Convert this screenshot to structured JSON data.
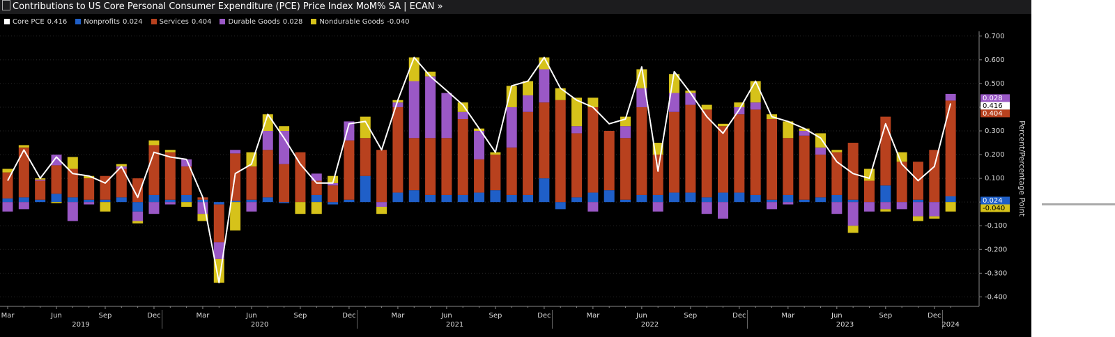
{
  "chart_data": {
    "type": "stacked_bar",
    "title": "Contributions to US Core Personal Consumer Expenditure (PCE) Price Index MoM% SA | ECAN »",
    "y_axis_label": "Percent/Percentage Point",
    "categories": [
      "Mar",
      null,
      null,
      "Jun",
      null,
      null,
      "Sep",
      null,
      null,
      "Dec",
      null,
      null,
      "Mar",
      null,
      null,
      "Jun",
      null,
      null,
      "Sep",
      null,
      null,
      "Dec",
      null,
      null,
      "Mar",
      null,
      null,
      "Jun",
      null,
      null,
      "Sep",
      null,
      null,
      "Dec",
      null,
      null,
      "Mar",
      null,
      null,
      "Jun",
      null,
      null,
      "Sep",
      null,
      null,
      "Dec",
      null,
      null,
      "Mar",
      null,
      null,
      "Jun",
      null,
      null,
      "Sep",
      null,
      null,
      "Dec",
      null
    ],
    "year_groups": [
      {
        "label": "2019",
        "count": 10
      },
      {
        "label": "2020",
        "count": 12
      },
      {
        "label": "2021",
        "count": 12
      },
      {
        "label": "2022",
        "count": 12
      },
      {
        "label": "2023",
        "count": 12
      },
      {
        "label": "2024",
        "count": 1
      }
    ],
    "series": [
      {
        "name": "Core PCE",
        "type": "line",
        "color": "#ffffff",
        "last_label": "0.416",
        "values": [
          0.09,
          0.22,
          0.1,
          0.19,
          0.12,
          0.11,
          0.08,
          0.15,
          0.02,
          0.21,
          0.19,
          0.18,
          0.02,
          -0.34,
          0.12,
          0.16,
          0.37,
          0.27,
          0.16,
          0.08,
          0.08,
          0.33,
          0.34,
          0.22,
          0.43,
          0.61,
          0.53,
          0.47,
          0.41,
          0.31,
          0.21,
          0.49,
          0.51,
          0.61,
          0.48,
          0.43,
          0.4,
          0.33,
          0.35,
          0.57,
          0.13,
          0.55,
          0.46,
          0.36,
          0.29,
          0.39,
          0.51,
          0.36,
          0.34,
          0.31,
          0.27,
          0.17,
          0.12,
          0.1,
          0.33,
          0.16,
          0.09,
          0.15,
          0.416
        ]
      },
      {
        "name": "Nonprofits",
        "type": "bar",
        "color": "#1f5fc8",
        "last_label": "0.024",
        "values": [
          0.015,
          0.02,
          0.01,
          0.035,
          0.02,
          0.01,
          0.01,
          0.02,
          -0.04,
          0.03,
          0.01,
          0.03,
          0.01,
          -0.01,
          0.005,
          0.01,
          0.02,
          -0.005,
          0.0,
          0.03,
          -0.01,
          0.01,
          0.11,
          0.0,
          0.04,
          0.05,
          0.03,
          0.03,
          0.03,
          0.04,
          0.05,
          0.03,
          0.03,
          0.1,
          -0.03,
          0.02,
          0.04,
          0.05,
          0.01,
          0.03,
          0.03,
          0.04,
          0.04,
          0.02,
          0.04,
          0.04,
          0.03,
          0.01,
          0.03,
          0.01,
          0.02,
          0.03,
          0.01,
          0.0,
          0.07,
          0.0,
          0.01,
          0.0,
          0.024
        ]
      },
      {
        "name": "Services",
        "type": "bar",
        "color": "#b8411e",
        "last_label": "0.404",
        "values": [
          0.11,
          0.21,
          0.08,
          0.12,
          0.12,
          0.09,
          0.1,
          0.12,
          0.1,
          0.21,
          0.2,
          0.12,
          0.01,
          -0.16,
          0.2,
          0.14,
          0.2,
          0.16,
          0.21,
          0.06,
          0.07,
          0.25,
          0.16,
          0.22,
          0.36,
          0.22,
          0.24,
          0.24,
          0.32,
          0.14,
          0.15,
          0.2,
          0.35,
          0.32,
          0.43,
          0.27,
          0.36,
          0.25,
          0.26,
          0.37,
          0.17,
          0.34,
          0.37,
          0.37,
          0.28,
          0.33,
          0.36,
          0.34,
          0.24,
          0.27,
          0.18,
          0.18,
          0.24,
          0.09,
          0.29,
          0.17,
          0.16,
          0.22,
          0.404
        ]
      },
      {
        "name": "Durable Goods",
        "type": "bar",
        "color": "#9a58c6",
        "last_label": "0.028",
        "values": [
          -0.04,
          -0.03,
          0.005,
          0.045,
          -0.08,
          -0.01,
          0.0,
          0.01,
          -0.04,
          -0.05,
          -0.01,
          0.03,
          -0.05,
          -0.07,
          0.015,
          -0.04,
          0.08,
          0.14,
          0.0,
          0.03,
          0.01,
          0.08,
          0.0,
          -0.02,
          0.02,
          0.24,
          0.26,
          0.19,
          0.03,
          0.12,
          0.0,
          0.17,
          0.07,
          0.14,
          0.0,
          0.03,
          -0.04,
          0.0,
          0.05,
          0.08,
          -0.04,
          0.08,
          0.05,
          -0.05,
          -0.07,
          0.03,
          0.03,
          -0.03,
          -0.01,
          0.02,
          0.03,
          -0.05,
          -0.1,
          -0.04,
          -0.03,
          -0.03,
          -0.06,
          -0.06,
          0.028
        ]
      },
      {
        "name": "Nondurable Goods",
        "type": "bar",
        "color": "#d6c21a",
        "last_label": "-0.040",
        "values": [
          0.015,
          0.01,
          0.005,
          -0.005,
          0.05,
          0.01,
          -0.04,
          0.01,
          -0.01,
          0.02,
          0.01,
          -0.02,
          -0.03,
          -0.1,
          -0.12,
          0.06,
          0.07,
          0.02,
          -0.05,
          -0.05,
          0.03,
          0.0,
          0.09,
          -0.03,
          0.01,
          0.1,
          0.02,
          0.0,
          0.04,
          0.01,
          0.01,
          0.09,
          0.06,
          0.05,
          0.05,
          0.12,
          0.04,
          0.0,
          0.04,
          0.08,
          0.05,
          0.08,
          0.01,
          0.02,
          0.01,
          0.02,
          0.09,
          0.02,
          0.07,
          0.01,
          0.06,
          0.01,
          -0.03,
          0.05,
          -0.01,
          0.04,
          -0.02,
          -0.01,
          -0.04
        ]
      }
    ],
    "ylim": [
      -0.44,
      0.72
    ],
    "yticks": [
      {
        "value": 0.7,
        "label": "0.700"
      },
      {
        "value": 0.6,
        "label": "0.600"
      },
      {
        "value": 0.5,
        "label": "0.500"
      },
      {
        "value": 0.4,
        "label": "0.400"
      },
      {
        "value": 0.3,
        "label": "0.300"
      },
      {
        "value": 0.2,
        "label": "0.200"
      },
      {
        "value": 0.1,
        "label": "0.100"
      },
      {
        "value": 0,
        "label": "0.000"
      },
      {
        "value": -0.1,
        "label": "-0.100"
      },
      {
        "value": -0.2,
        "label": "-0.200"
      },
      {
        "value": -0.3,
        "label": "-0.300"
      },
      {
        "value": -0.4,
        "label": "-0.400"
      }
    ],
    "grid": true
  }
}
